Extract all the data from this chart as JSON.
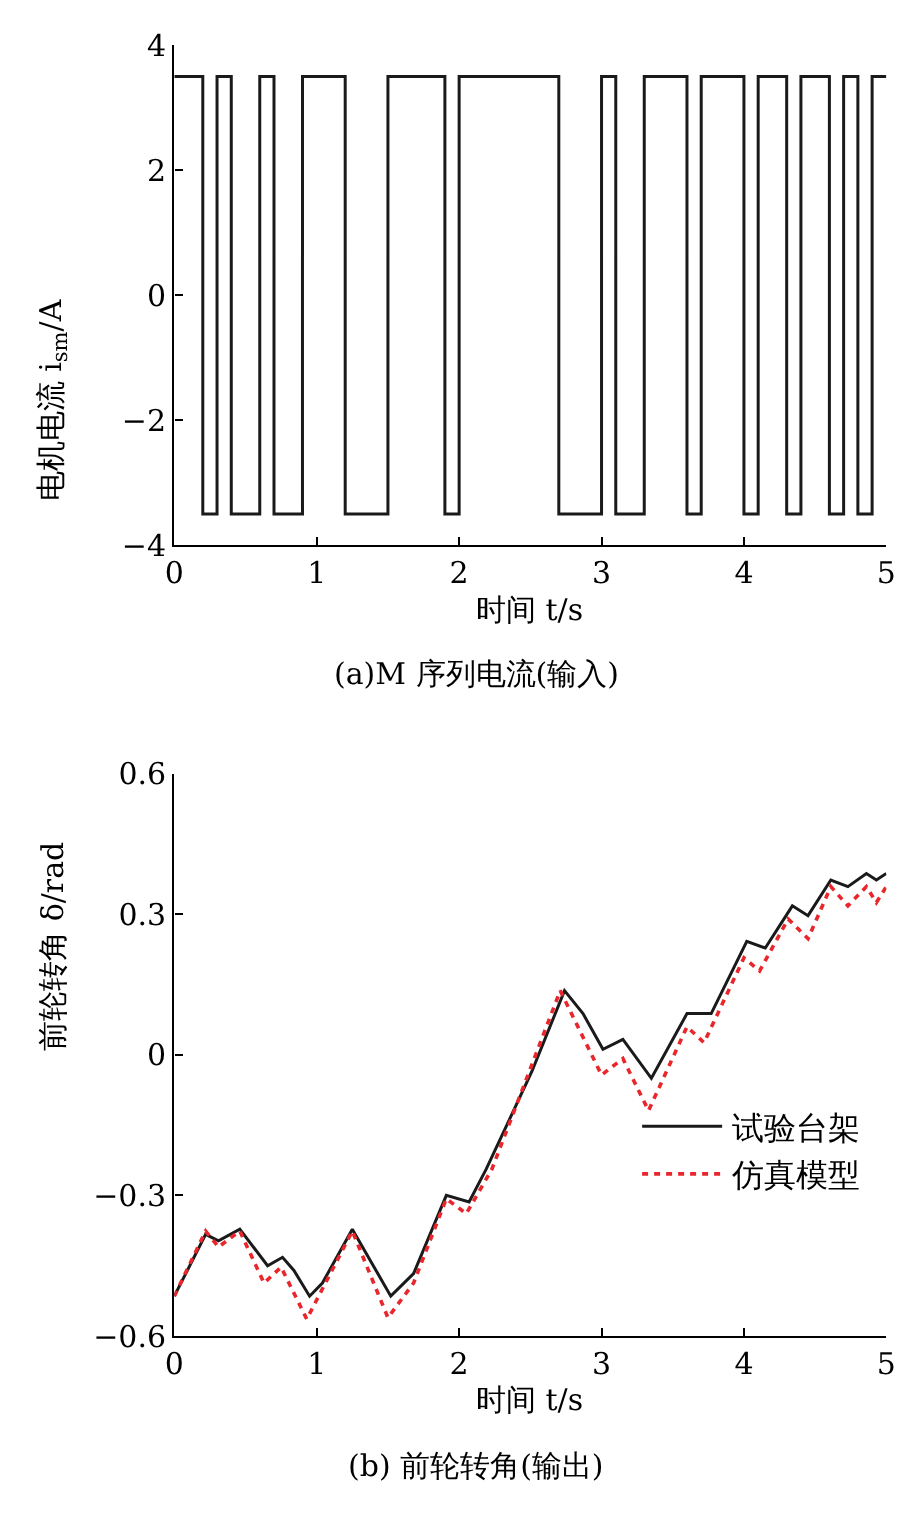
{
  "chart_data": [
    {
      "type": "step",
      "title": "(a)M 序列电流(输入)",
      "xlabel": "时间 t/s",
      "ylabel": "电机电流 i$_{sm}$/A",
      "xlim": [
        0,
        5
      ],
      "xticks": [
        0,
        1,
        2,
        3,
        4,
        5
      ],
      "ylim": [
        -4,
        4
      ],
      "yticks": [
        -4,
        -2,
        0,
        2,
        4
      ],
      "series": [
        {
          "color": "#1a1a1a",
          "line_style": "solid",
          "x": [
            0,
            0.2,
            0.3,
            0.4,
            0.6,
            0.7,
            0.9,
            1.2,
            1.5,
            1.9,
            2.0,
            2.7,
            3.0,
            3.1,
            3.3,
            3.6,
            3.7,
            4.0,
            4.1,
            4.3,
            4.4,
            4.6,
            4.7,
            4.8,
            4.9,
            5.0
          ],
          "values": [
            3.5,
            -3.5,
            3.5,
            -3.5,
            3.5,
            -3.5,
            3.5,
            -3.5,
            3.5,
            -3.5,
            3.5,
            -3.5,
            3.5,
            -3.5,
            3.5,
            -3.5,
            3.5,
            -3.5,
            3.5,
            -3.5,
            3.5,
            -3.5,
            3.5,
            -3.5,
            3.5,
            3.5
          ]
        }
      ]
    },
    {
      "type": "line",
      "title": "(b) 前轮转角(输出)",
      "xlabel": "时间 t/s",
      "ylabel": "前轮转角 δ/rad",
      "xlim": [
        0,
        5
      ],
      "xticks": [
        0,
        1,
        2,
        3,
        4,
        5
      ],
      "ylim": [
        -0.6,
        0.6
      ],
      "yticks": [
        -0.6,
        -0.3,
        0,
        0.3,
        0.6
      ],
      "legend": "right",
      "series": [
        {
          "name": "试验台架",
          "color": "#1a1a1a",
          "line_style": "solid",
          "x": [
            0,
            0.08,
            0.22,
            0.31,
            0.46,
            0.655,
            0.76,
            0.84,
            0.95,
            1.04,
            1.25,
            1.52,
            1.68,
            1.91,
            2.07,
            2.19,
            2.51,
            2.74,
            2.87,
            3.01,
            3.15,
            3.35,
            3.6,
            3.77,
            4.02,
            4.15,
            4.34,
            4.45,
            4.61,
            4.73,
            4.86,
            4.93,
            5.0
          ],
          "values": [
            -0.515,
            -0.467,
            -0.383,
            -0.397,
            -0.372,
            -0.45,
            -0.432,
            -0.46,
            -0.515,
            -0.487,
            -0.372,
            -0.515,
            -0.467,
            -0.3,
            -0.314,
            -0.244,
            -0.036,
            0.137,
            0.088,
            0.012,
            0.033,
            -0.05,
            0.088,
            0.088,
            0.242,
            0.228,
            0.318,
            0.297,
            0.373,
            0.359,
            0.387,
            0.373,
            0.387
          ]
        },
        {
          "name": "仿真模型",
          "color": "#e8262b",
          "line_style": "dotted",
          "x": [
            0,
            0.22,
            0.31,
            0.46,
            0.63,
            0.75,
            0.93,
            1.25,
            1.5,
            1.68,
            1.91,
            2.05,
            2.23,
            2.71,
            3.0,
            3.15,
            3.33,
            3.6,
            3.72,
            4.0,
            4.11,
            4.31,
            4.45,
            4.61,
            4.73,
            4.86,
            4.93,
            5.0
          ],
          "values": [
            -0.515,
            -0.376,
            -0.41,
            -0.376,
            -0.487,
            -0.453,
            -0.564,
            -0.376,
            -0.561,
            -0.487,
            -0.307,
            -0.339,
            -0.244,
            0.137,
            -0.043,
            -0.008,
            -0.119,
            0.06,
            0.026,
            0.207,
            0.179,
            0.29,
            0.248,
            0.359,
            0.318,
            0.359,
            0.325,
            0.359
          ]
        }
      ]
    }
  ]
}
